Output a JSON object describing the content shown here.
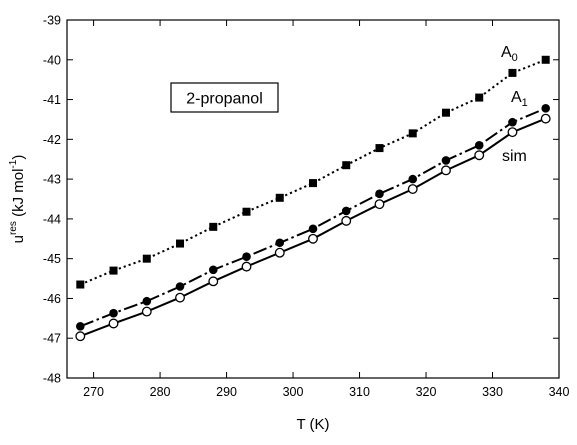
{
  "chart_data": {
    "type": "line",
    "xlabel": "T (K)",
    "ylabel": {
      "base": "u",
      "sup": "res",
      "rest": " (kJ mol",
      "unit_sup": "-1",
      "close": ")"
    },
    "xlim": [
      266,
      340
    ],
    "ylim": [
      -48,
      -39
    ],
    "xticks": [
      270,
      280,
      290,
      300,
      310,
      320,
      330,
      340
    ],
    "yticks": [
      -48,
      -47,
      -46,
      -45,
      -44,
      -43,
      -42,
      -41,
      -40,
      -39
    ],
    "x": [
      268,
      273,
      278,
      283,
      288,
      293,
      298,
      303,
      308,
      313,
      318,
      323,
      328,
      333,
      338
    ],
    "series": [
      {
        "name": "A0",
        "label_base": "A",
        "label_sub": "0",
        "line": "dotted",
        "marker": "filled-square",
        "values": [
          -45.65,
          -45.3,
          -45.0,
          -44.62,
          -44.2,
          -43.82,
          -43.47,
          -43.1,
          -42.65,
          -42.22,
          -41.85,
          -41.33,
          -40.95,
          -40.33,
          -40.0
        ]
      },
      {
        "name": "A1",
        "label_base": "A",
        "label_sub": "1",
        "line": "dash-dot",
        "marker": "filled-circle",
        "values": [
          -46.7,
          -46.37,
          -46.07,
          -45.7,
          -45.28,
          -44.95,
          -44.6,
          -44.25,
          -43.8,
          -43.37,
          -43.0,
          -42.53,
          -42.15,
          -41.57,
          -41.22
        ]
      },
      {
        "name": "sim",
        "label_base": "sim",
        "label_sub": "",
        "line": "solid",
        "marker": "open-circle",
        "values": [
          -46.95,
          -46.63,
          -46.33,
          -45.98,
          -45.57,
          -45.2,
          -44.85,
          -44.5,
          -44.05,
          -43.63,
          -43.25,
          -42.78,
          -42.4,
          -41.82,
          -41.48
        ]
      }
    ],
    "annotation": "2-propanol",
    "grid": false,
    "legend": "inline labels"
  }
}
